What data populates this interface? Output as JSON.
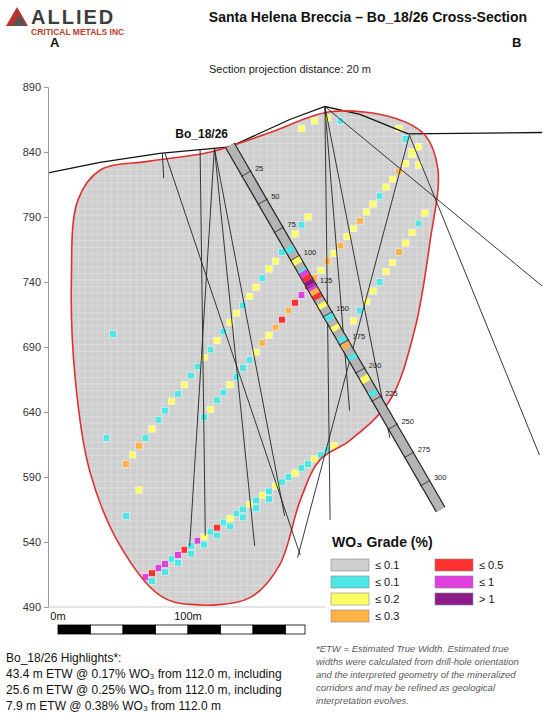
{
  "logo": {
    "name": "ALLIED",
    "tagline": "CRITICAL METALS INC"
  },
  "chart_data": {
    "type": "cross_section",
    "title": "Santa Helena Breccia – Bo_18/26 Cross-Section",
    "subtitle": "Section projection distance: 20 m",
    "section_ends": [
      "A",
      "B"
    ],
    "xlim": [
      0,
      380
    ],
    "ylim": [
      490,
      890
    ],
    "yticks": [
      490,
      540,
      590,
      640,
      690,
      740,
      790,
      840,
      890
    ],
    "tick_labels": "y",
    "legend": "lower right",
    "topography": {
      "x": [
        0,
        40,
        86,
        140,
        186,
        213,
        240,
        277,
        380
      ],
      "y": [
        824,
        832,
        839,
        844,
        865,
        875,
        869,
        854,
        855
      ]
    },
    "outline": {
      "x": [
        40,
        23,
        18,
        21,
        32,
        55,
        86,
        109,
        155,
        178,
        194,
        209,
        232,
        263,
        282,
        294,
        300,
        290,
        267,
        217,
        171,
        125,
        78
      ],
      "y": [
        826,
        803,
        742,
        665,
        595,
        538,
        499,
        492,
        497,
        522,
        572,
        603,
        618,
        649,
        703,
        772,
        826,
        853,
        866,
        871,
        855,
        840,
        833
      ]
    },
    "grade_classes": {
      "title": "WO₃ Grade (%)",
      "labels": [
        "≤ 0.1",
        "≤ 0.1",
        "≤ 0.2",
        "≤ 0.3",
        "≤ 0.5",
        "≤ 1",
        "> 1"
      ],
      "colors": [
        "#cfcfcf",
        "#4fe6e6",
        "#ffff66",
        "#ffb347",
        "#ff3030",
        "#e040e0",
        "#8b1a8b"
      ]
    },
    "cell_size": 5,
    "cells": [
      [
        65,
        506,
        5
      ],
      [
        70,
        509,
        6
      ],
      [
        75,
        513,
        5
      ],
      [
        80,
        516,
        4
      ],
      [
        85,
        520,
        5
      ],
      [
        90,
        523,
        5
      ],
      [
        95,
        527,
        1
      ],
      [
        100,
        530,
        5
      ],
      [
        105,
        534,
        4
      ],
      [
        110,
        537,
        1
      ],
      [
        115,
        541,
        5
      ],
      [
        120,
        544,
        2
      ],
      [
        125,
        548,
        1
      ],
      [
        130,
        551,
        4
      ],
      [
        135,
        555,
        1
      ],
      [
        140,
        558,
        2
      ],
      [
        145,
        562,
        1
      ],
      [
        150,
        565,
        1
      ],
      [
        155,
        569,
        2
      ],
      [
        160,
        572,
        1
      ],
      [
        80,
        510,
        1
      ],
      [
        90,
        517,
        1
      ],
      [
        100,
        524,
        1
      ],
      [
        110,
        531,
        1
      ],
      [
        120,
        538,
        1
      ],
      [
        130,
        545,
        1
      ],
      [
        140,
        552,
        1
      ],
      [
        150,
        559,
        1
      ],
      [
        160,
        566,
        1
      ],
      [
        170,
        573,
        1
      ],
      [
        165,
        576,
        2
      ],
      [
        170,
        579,
        1
      ],
      [
        175,
        583,
        2
      ],
      [
        180,
        586,
        1
      ],
      [
        185,
        590,
        1
      ],
      [
        190,
        593,
        2
      ],
      [
        195,
        597,
        1
      ],
      [
        200,
        600,
        1
      ],
      [
        205,
        604,
        2
      ],
      [
        210,
        607,
        1
      ],
      [
        215,
        611,
        1
      ],
      [
        220,
        614,
        2
      ],
      [
        120,
        636,
        1
      ],
      [
        125,
        642,
        2
      ],
      [
        130,
        649,
        1
      ],
      [
        135,
        655,
        1
      ],
      [
        140,
        661,
        2
      ],
      [
        145,
        667,
        1
      ],
      [
        150,
        674,
        1
      ],
      [
        155,
        680,
        1
      ],
      [
        160,
        686,
        2
      ],
      [
        165,
        693,
        3
      ],
      [
        170,
        699,
        2
      ],
      [
        175,
        705,
        3
      ],
      [
        180,
        711,
        4
      ],
      [
        185,
        718,
        3
      ],
      [
        190,
        724,
        4
      ],
      [
        195,
        730,
        5
      ],
      [
        200,
        737,
        4
      ],
      [
        205,
        743,
        3
      ],
      [
        210,
        749,
        2
      ],
      [
        215,
        756,
        3
      ],
      [
        220,
        762,
        2
      ],
      [
        225,
        768,
        3
      ],
      [
        230,
        775,
        2
      ],
      [
        235,
        781,
        2
      ],
      [
        240,
        787,
        3
      ],
      [
        245,
        794,
        2
      ],
      [
        250,
        800,
        2
      ],
      [
        255,
        806,
        1
      ],
      [
        260,
        813,
        2
      ],
      [
        265,
        819,
        2
      ],
      [
        270,
        825,
        3
      ],
      [
        275,
        831,
        2
      ],
      [
        280,
        838,
        2
      ],
      [
        285,
        844,
        2
      ],
      [
        60,
        600,
        3
      ],
      [
        65,
        607,
        2
      ],
      [
        70,
        614,
        3
      ],
      [
        75,
        620,
        1
      ],
      [
        80,
        627,
        2
      ],
      [
        85,
        634,
        1
      ],
      [
        90,
        641,
        1
      ],
      [
        95,
        648,
        2
      ],
      [
        100,
        654,
        1
      ],
      [
        105,
        661,
        2
      ],
      [
        110,
        668,
        1
      ],
      [
        115,
        675,
        1
      ],
      [
        120,
        682,
        2
      ],
      [
        125,
        688,
        1
      ],
      [
        130,
        695,
        2
      ],
      [
        135,
        702,
        1
      ],
      [
        140,
        709,
        2
      ],
      [
        145,
        716,
        2
      ],
      [
        150,
        722,
        1
      ],
      [
        155,
        729,
        2
      ],
      [
        160,
        736,
        2
      ],
      [
        165,
        743,
        1
      ],
      [
        170,
        750,
        2
      ],
      [
        175,
        756,
        2
      ],
      [
        180,
        763,
        1
      ],
      [
        185,
        770,
        2
      ],
      [
        190,
        777,
        2
      ],
      [
        195,
        784,
        1
      ],
      [
        200,
        790,
        2
      ],
      [
        235,
        710,
        2
      ],
      [
        240,
        718,
        1
      ],
      [
        245,
        725,
        2
      ],
      [
        250,
        733,
        2
      ],
      [
        255,
        740,
        1
      ],
      [
        260,
        748,
        2
      ],
      [
        265,
        755,
        2
      ],
      [
        270,
        763,
        3
      ],
      [
        275,
        770,
        2
      ],
      [
        280,
        778,
        2
      ],
      [
        285,
        785,
        1
      ],
      [
        290,
        793,
        2
      ],
      [
        285,
        830,
        2
      ],
      [
        280,
        840,
        2
      ],
      [
        275,
        850,
        1
      ],
      [
        270,
        858,
        2
      ],
      [
        195,
        858,
        2
      ],
      [
        205,
        864,
        2
      ],
      [
        215,
        866,
        2
      ],
      [
        225,
        864,
        1
      ],
      [
        60,
        560,
        1
      ],
      [
        45,
        620,
        1
      ],
      [
        70,
        580,
        2
      ],
      [
        50,
        700,
        1
      ]
    ],
    "drill_holes": [
      {
        "collar": [
          88,
          839
        ],
        "end": [
          89,
          820
        ]
      },
      {
        "collar": [
          90,
          839
        ],
        "end": [
          194,
          530
        ]
      },
      {
        "collar": [
          117,
          842
        ],
        "end": [
          121,
          545
        ]
      },
      {
        "collar": [
          128,
          843
        ],
        "end": [
          109,
          537
        ]
      },
      {
        "collar": [
          128,
          843
        ],
        "end": [
          159,
          537
        ]
      },
      {
        "collar": [
          128,
          843
        ],
        "end": [
          182,
          560
        ]
      },
      {
        "collar": [
          213,
          875
        ],
        "end": [
          217,
          557
        ]
      },
      {
        "collar": [
          213,
          875
        ],
        "end": [
          263,
          620
        ]
      },
      {
        "collar": [
          213,
          875
        ],
        "end": [
          232,
          641
        ]
      },
      {
        "collar": [
          213,
          875
        ],
        "end": [
          380,
          737
        ]
      },
      {
        "collar": [
          278,
          853
        ],
        "end": [
          192,
          528
        ]
      },
      {
        "collar": [
          278,
          853
        ],
        "end": [
          378,
          607
        ]
      }
    ],
    "main_hole": {
      "name": "Bo_18/26",
      "collar": [
        140,
        845
      ],
      "end": [
        302,
        565
      ],
      "depth_ticks": [
        25,
        50,
        75,
        100,
        125,
        150,
        175,
        200,
        225,
        250,
        275,
        300
      ],
      "intervals": [
        [
          90,
          95,
          1
        ],
        [
          100,
          105,
          2
        ],
        [
          110,
          112,
          1
        ],
        [
          112,
          116,
          5
        ],
        [
          116,
          120,
          4
        ],
        [
          120,
          124,
          6
        ],
        [
          124,
          128,
          5
        ],
        [
          128,
          132,
          3
        ],
        [
          132,
          136,
          4
        ],
        [
          140,
          144,
          2
        ],
        [
          150,
          155,
          1
        ],
        [
          160,
          164,
          2
        ],
        [
          170,
          174,
          1
        ],
        [
          176,
          180,
          3
        ],
        [
          186,
          190,
          1
        ],
        [
          205,
          210,
          2
        ],
        [
          218,
          222,
          1
        ]
      ]
    },
    "scale_bar": {
      "ticks": [
        {
          "value": 0,
          "label": "0m"
        },
        {
          "value": 100,
          "label": "100m"
        }
      ],
      "length": 190,
      "segment": 25
    }
  },
  "highlights": {
    "title": "Bo_18/26 Highlights*:",
    "lines": [
      "43.4 m ETW @ 0.17% WO₃ from 112.0 m, including",
      "25.6 m ETW @ 0.25% WO₃ from 112.0 m, including",
      "7.9 m ETW @ 0.38% WO₃ from 112.0 m"
    ]
  },
  "footnote": [
    "*ETW = Estimated True Width. Estimated true",
    "widths were calculated from drill-hole orientation",
    "and the interpreted geometry of the mineralized",
    "corridors and may be refined as geological",
    "interpretation evolves."
  ]
}
